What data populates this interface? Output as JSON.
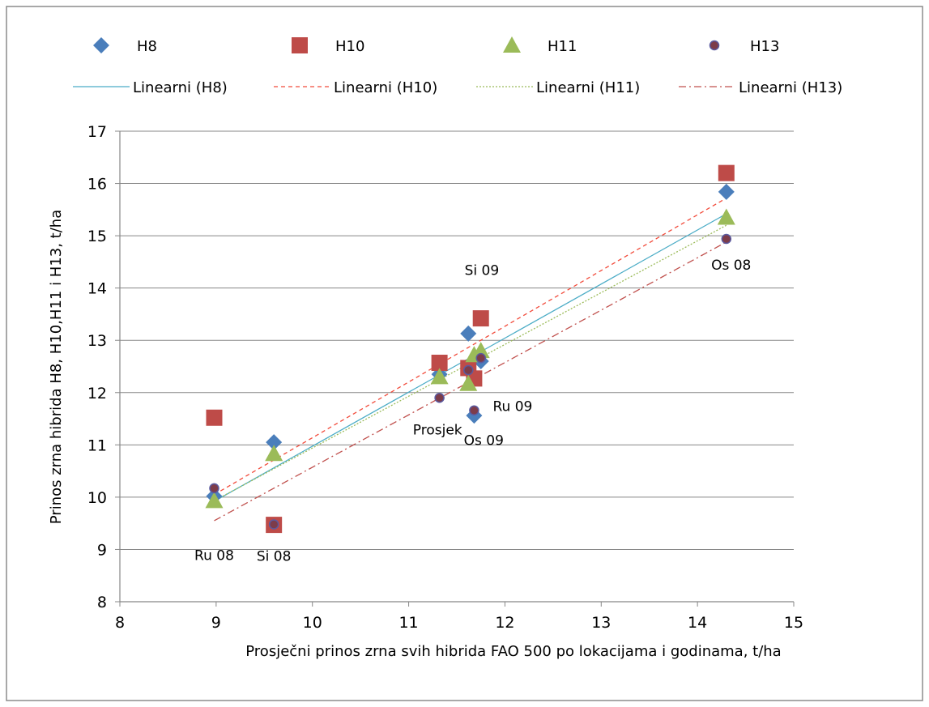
{
  "chart_data": {
    "type": "scatter",
    "xlabel": "Prosječni prinos zrna svih hibrida FAO 500 po lokacijama i godinama, t/ha",
    "ylabel": "Prinos zrna hibrida H8, H10,H11 i H13, t/ha",
    "xlim": [
      8,
      15
    ],
    "ylim": [
      8,
      17
    ],
    "x_ticks": [
      "8",
      "9",
      "10",
      "11",
      "12",
      "13",
      "14",
      "15"
    ],
    "y_ticks": [
      "8",
      "9",
      "10",
      "11",
      "12",
      "13",
      "14",
      "15",
      "16",
      "17"
    ],
    "grid": "horizontal",
    "legend_position": "top",
    "series": [
      {
        "name": "H8",
        "marker": "diamond",
        "color": "#4A7EBB",
        "points": [
          [
            8.98,
            10.02
          ],
          [
            9.6,
            11.05
          ],
          [
            11.32,
            12.35
          ],
          [
            11.62,
            13.13
          ],
          [
            11.68,
            11.56
          ],
          [
            11.75,
            12.6
          ],
          [
            14.3,
            15.84
          ]
        ]
      },
      {
        "name": "H10",
        "marker": "square",
        "color": "#BE4B48",
        "points": [
          [
            8.98,
            11.52
          ],
          [
            9.6,
            9.47
          ],
          [
            11.32,
            12.57
          ],
          [
            11.62,
            12.47
          ],
          [
            11.68,
            12.27
          ],
          [
            11.75,
            13.42
          ],
          [
            14.3,
            16.2
          ]
        ]
      },
      {
        "name": "H11",
        "marker": "triangle",
        "color": "#9BBB59",
        "points": [
          [
            8.98,
            9.93
          ],
          [
            9.6,
            10.83
          ],
          [
            11.32,
            12.3
          ],
          [
            11.62,
            12.17
          ],
          [
            11.68,
            12.72
          ],
          [
            11.75,
            12.8
          ],
          [
            14.3,
            15.35
          ]
        ]
      },
      {
        "name": "H13",
        "marker": "circle",
        "color": "#7D3C4A",
        "points": [
          [
            8.98,
            10.17
          ],
          [
            9.6,
            9.48
          ],
          [
            11.32,
            11.9
          ],
          [
            11.62,
            12.43
          ],
          [
            11.68,
            11.66
          ],
          [
            11.75,
            12.66
          ],
          [
            14.3,
            14.94
          ]
        ]
      }
    ],
    "trendlines": [
      {
        "name": "Linearni (H8)",
        "style": "solid",
        "color": "#4BACC6",
        "x": [
          8.98,
          14.3
        ],
        "y": [
          9.92,
          15.42
        ]
      },
      {
        "name": "Linearni (H10)",
        "style": "dashed",
        "color": "#F24B3B",
        "x": [
          8.98,
          14.3
        ],
        "y": [
          10.05,
          15.72
        ]
      },
      {
        "name": "Linearni (H11)",
        "style": "dotted",
        "color": "#9BBB59",
        "x": [
          8.98,
          14.3
        ],
        "y": [
          9.93,
          15.2
        ]
      },
      {
        "name": "Linearni (H13)",
        "style": "dashdot",
        "color": "#C0504D",
        "x": [
          8.98,
          14.3
        ],
        "y": [
          9.55,
          14.88
        ]
      }
    ],
    "annotations": [
      {
        "text": "Ru 08",
        "x": 8.98,
        "y": 8.8
      },
      {
        "text": "Si 08",
        "x": 9.6,
        "y": 8.78
      },
      {
        "text": "Prosjek",
        "x": 11.3,
        "y": 11.2
      },
      {
        "text": "Os 09",
        "x": 11.78,
        "y": 11.0
      },
      {
        "text": "Ru 09",
        "x": 12.08,
        "y": 11.65
      },
      {
        "text": "Si 09",
        "x": 11.76,
        "y": 14.25
      },
      {
        "text": "Os 08",
        "x": 14.35,
        "y": 14.35
      }
    ]
  }
}
